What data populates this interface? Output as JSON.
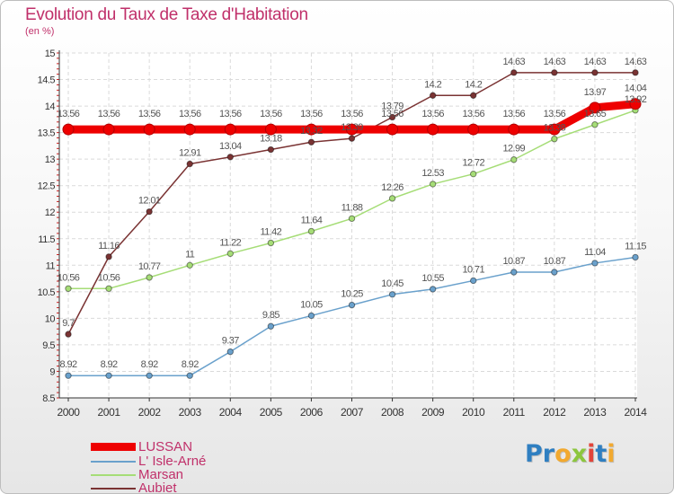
{
  "chart_data": {
    "type": "line",
    "title": "Evolution du Taux de Taxe d'Habitation",
    "subtitle": "(en %)",
    "x": [
      "2000",
      "2001",
      "2002",
      "2003",
      "2004",
      "2005",
      "2006",
      "2007",
      "2008",
      "2009",
      "2010",
      "2011",
      "2012",
      "2013",
      "2014"
    ],
    "ylim": [
      8.5,
      15
    ],
    "yticks": [
      "8.5",
      "9",
      "9.5",
      "10",
      "10.5",
      "11",
      "11.5",
      "12",
      "12.5",
      "13",
      "13.5",
      "14",
      "14.5",
      "15"
    ],
    "grid": true,
    "legend_position": "bottom-left",
    "series": [
      {
        "name": "LUSSAN",
        "color": "#ee0000",
        "values": [
          13.56,
          13.56,
          13.56,
          13.56,
          13.56,
          13.56,
          13.56,
          13.56,
          13.56,
          13.56,
          13.56,
          13.56,
          13.56,
          13.97,
          14.04
        ],
        "labels": [
          "13.56",
          "13.56",
          "13.56",
          "13.56",
          "13.56",
          "13.56",
          "13.56",
          "13.56",
          "13.56",
          "13.56",
          "13.56",
          "13.56",
          "13.56",
          "13.97",
          "14.04"
        ]
      },
      {
        "name": "L' Isle-Arné",
        "color": "#6aa1cc",
        "values": [
          8.92,
          8.92,
          8.92,
          8.92,
          9.37,
          9.85,
          10.05,
          10.25,
          10.45,
          10.55,
          10.71,
          10.87,
          10.87,
          11.04,
          11.15
        ],
        "labels": [
          "8.92",
          "8.92",
          "8.92",
          "8.92",
          "9.37",
          "9.85",
          "10.05",
          "10.25",
          "10.45",
          "10.55",
          "10.71",
          "10.87",
          "10.87",
          "11.04",
          "11.15"
        ]
      },
      {
        "name": "Marsan",
        "color": "#a6dd77",
        "values": [
          10.56,
          10.56,
          10.77,
          11,
          11.22,
          11.42,
          11.64,
          11.88,
          12.26,
          12.53,
          12.72,
          12.99,
          13.38,
          13.65,
          13.92
        ],
        "labels": [
          "10.56",
          "10.56",
          "10.77",
          "11",
          "11.22",
          "11.42",
          "11.64",
          "11.88",
          "12.26",
          "12.53",
          "12.72",
          "12.99",
          "13.38",
          "13.65",
          "13.92"
        ]
      },
      {
        "name": "Aubiet",
        "color": "#7a3333",
        "values": [
          9.7,
          11.16,
          12.01,
          12.91,
          13.04,
          13.18,
          13.32,
          13.39,
          13.79,
          14.2,
          14.2,
          14.63,
          14.63,
          14.63,
          14.63
        ],
        "labels": [
          "9.7",
          "11.16",
          "12.01",
          "12.91",
          "13.04",
          "13.18",
          "13.32",
          "13.39",
          "13.79",
          "14.2",
          "14.2",
          "14.63",
          "14.63",
          "14.63",
          "14.63"
        ]
      }
    ]
  },
  "logo": {
    "letters": [
      {
        "ch": "P",
        "color": "#2f7fc1"
      },
      {
        "ch": "r",
        "color": "#2f7fc1"
      },
      {
        "ch": "o",
        "color": "#f2a92f"
      },
      {
        "ch": "x",
        "color": "#8cc63e"
      },
      {
        "ch": "i",
        "color": "#e2443a"
      },
      {
        "ch": "t",
        "color": "#2f7fc1"
      },
      {
        "ch": "i",
        "color": "#f2a92f"
      }
    ]
  }
}
